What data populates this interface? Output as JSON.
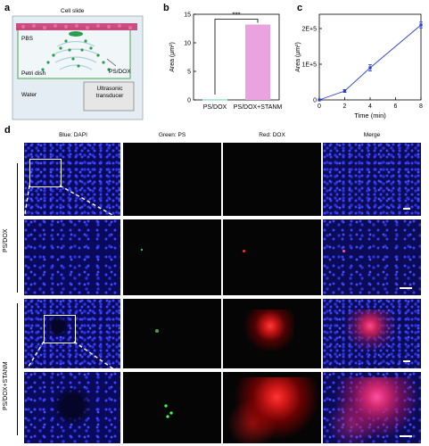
{
  "panel_labels": {
    "a": "a",
    "b": "b",
    "c": "c",
    "d": "d"
  },
  "schematic": {
    "cell_slide": "Cell slide",
    "pbs": "PBS",
    "ps_dox": "PS/DOX",
    "petri_dish": "Petri dish",
    "water": "Water",
    "transducer": "Ultrasonic transducer",
    "colors": {
      "slide": "#c8306f",
      "water": "#d9e6ef",
      "dish": "#63b56a",
      "particles": "#2a9d50",
      "transducer": "#e6e6e6"
    }
  },
  "chart_data": [
    {
      "type": "bar",
      "categories": [
        "PS/DOX",
        "PS/DOX+STANM"
      ],
      "values": [
        0.1,
        13.2
      ],
      "ylabel": "Area (μm²)",
      "ylim": [
        0,
        15
      ],
      "yticks": [
        0,
        5,
        10,
        15
      ],
      "significance": "***",
      "colors": [
        "#7fd9c7",
        "#eba3e0"
      ]
    },
    {
      "type": "line",
      "x": [
        0,
        2,
        4,
        8
      ],
      "y": [
        0,
        25000,
        90000,
        210000
      ],
      "y_err": [
        0,
        4000,
        9000,
        8000
      ],
      "xlabel": "Time (min)",
      "ylabel": "Area (μm²)",
      "xlim": [
        0,
        8
      ],
      "ylim": [
        0,
        240000
      ],
      "xticks": [
        "0",
        "2",
        "4",
        "6",
        "8"
      ],
      "yticks": [
        {
          "value": 0,
          "label": "0"
        },
        {
          "value": 100000,
          "label": "1E+5"
        },
        {
          "value": 200000,
          "label": "2E+5"
        }
      ],
      "color": "#2b3fc9"
    }
  ],
  "micrographs": {
    "columns": [
      "Blue: DAPI",
      "Green:  PS",
      "Red: DOX",
      "Merge"
    ],
    "rows": [
      "PS/DOX",
      "PS/DOX+STANM"
    ]
  }
}
